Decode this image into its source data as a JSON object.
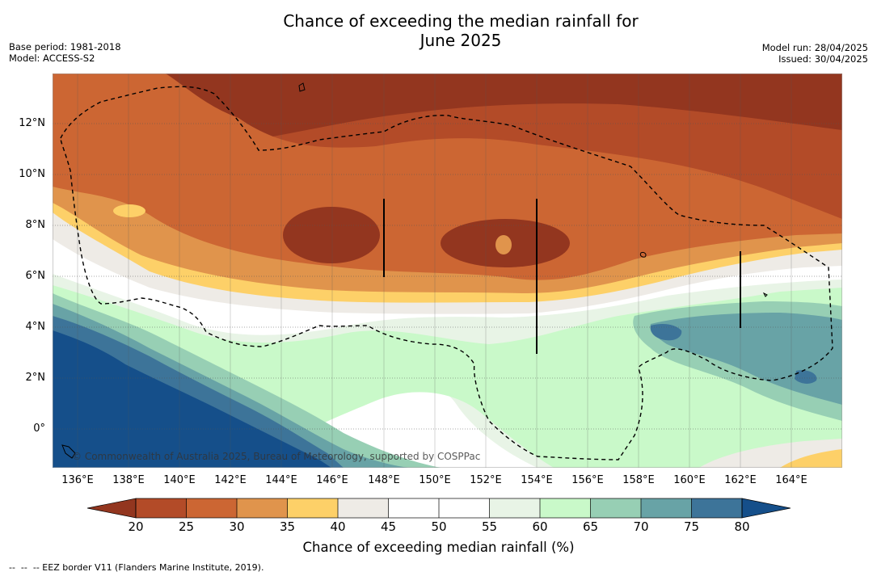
{
  "title_line1": "Chance of exceeding the median rainfall for",
  "title_line2": "June 2025",
  "base_period": "Base period: 1981-2018",
  "model": "Model: ACCESS-S2",
  "model_run": "Model run: 28/04/2025",
  "issued": "Issued: 30/04/2025",
  "copyright": "© Commonwealth of Australia 2025, Bureau of Meteorology, supported by COSPPac",
  "y_ticks": [
    "12°N",
    "10°N",
    "8°N",
    "6°N",
    "4°N",
    "2°N",
    "0°"
  ],
  "x_ticks": [
    "136°E",
    "138°E",
    "140°E",
    "142°E",
    "144°E",
    "146°E",
    "148°E",
    "150°E",
    "152°E",
    "154°E",
    "156°E",
    "158°E",
    "160°E",
    "162°E",
    "164°E"
  ],
  "colorbar": {
    "ticks": [
      "20",
      "25",
      "30",
      "35",
      "40",
      "45",
      "50",
      "55",
      "60",
      "65",
      "70",
      "75",
      "80"
    ],
    "title": "Chance of exceeding median rainfall (%)",
    "colors": {
      "lt20": "#93361f",
      "20-25": "#b34b28",
      "25-30": "#cc6633",
      "30-35": "#e0944c",
      "35-40": "#fdd068",
      "40-45": "#eeebe6",
      "45-50": "#ffffff",
      "50-55": "#ffffff",
      "55-60": "#e8f4e6",
      "60-65": "#c9f9c9",
      "65-70": "#97cfb4",
      "70-75": "#68a3a6",
      "75-80": "#3d7499",
      "gt80": "#154f8a"
    }
  },
  "footnote": "--  --  -- EEZ border V11 (Flanders Marine Institute, 2019)."
}
